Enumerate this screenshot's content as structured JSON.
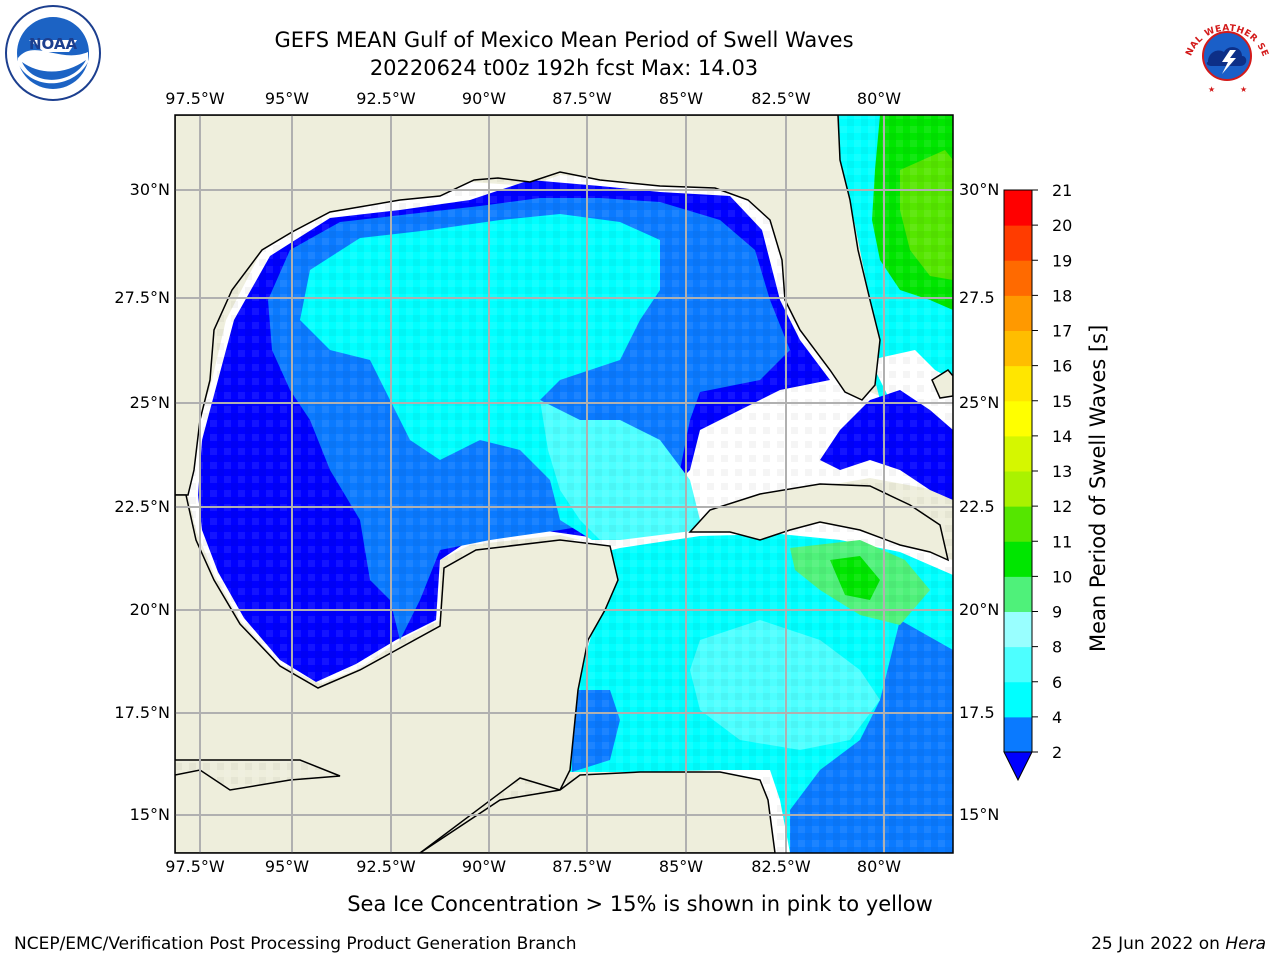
{
  "header": {
    "title_line1": "GEFS MEAN Gulf of Mexico Mean Period of Swell Waves",
    "title_line2": "20220624 t00z 192h fcst   Max: 14.03"
  },
  "logos": {
    "left": {
      "icon": "noaa-logo",
      "text": "NOAA"
    },
    "right": {
      "icon": "national-weather-service-logo",
      "text": "NATIONAL WEATHER SERVICE"
    }
  },
  "map": {
    "lon_labels": [
      "97.5°W",
      "95°W",
      "92.5°W",
      "90°W",
      "87.5°W",
      "85°W",
      "82.5°W",
      "80°W"
    ],
    "lat_labels_left": [
      "30°N",
      "27.5°N",
      "25°N",
      "22.5°N",
      "20°N",
      "17.5°N",
      "15°N"
    ],
    "lat_labels_right": [
      "30°N",
      "27.5",
      "25°N",
      "22.5",
      "20°N",
      "17.5",
      "15°N"
    ],
    "colors": {
      "land": "#eeeedc",
      "coast": "#000000",
      "grid": "#b0b0b0",
      "ocean_nodata": "#ffffff"
    }
  },
  "colorbar": {
    "label": "Mean Period of Swell Waves [s]",
    "ticks": [
      "2",
      "4",
      "6",
      "8",
      "9",
      "10",
      "11",
      "12",
      "13",
      "14",
      "15",
      "16",
      "17",
      "18",
      "19",
      "20",
      "21"
    ],
    "levels": [
      2,
      4,
      6,
      8,
      9,
      10,
      11,
      12,
      13,
      14,
      15,
      16,
      17,
      18,
      19,
      20,
      21
    ],
    "under_color": "#0000ff",
    "colors": [
      "#0a7aff",
      "#00ffff",
      "#4dffff",
      "#99ffff",
      "#4ff17a",
      "#00e600",
      "#55e600",
      "#aaf200",
      "#d5f700",
      "#ffff00",
      "#ffe600",
      "#ffbd00",
      "#ff9900",
      "#ff6a00",
      "#ff3c00",
      "#ff0000"
    ]
  },
  "caption": "Sea Ice Concentration > 15% is shown in pink to yellow",
  "footer": {
    "left": "NCEP/EMC/Verification Post Processing Product Generation Branch",
    "right_date": "25 Jun 2022 on ",
    "right_machine": "Hera"
  }
}
